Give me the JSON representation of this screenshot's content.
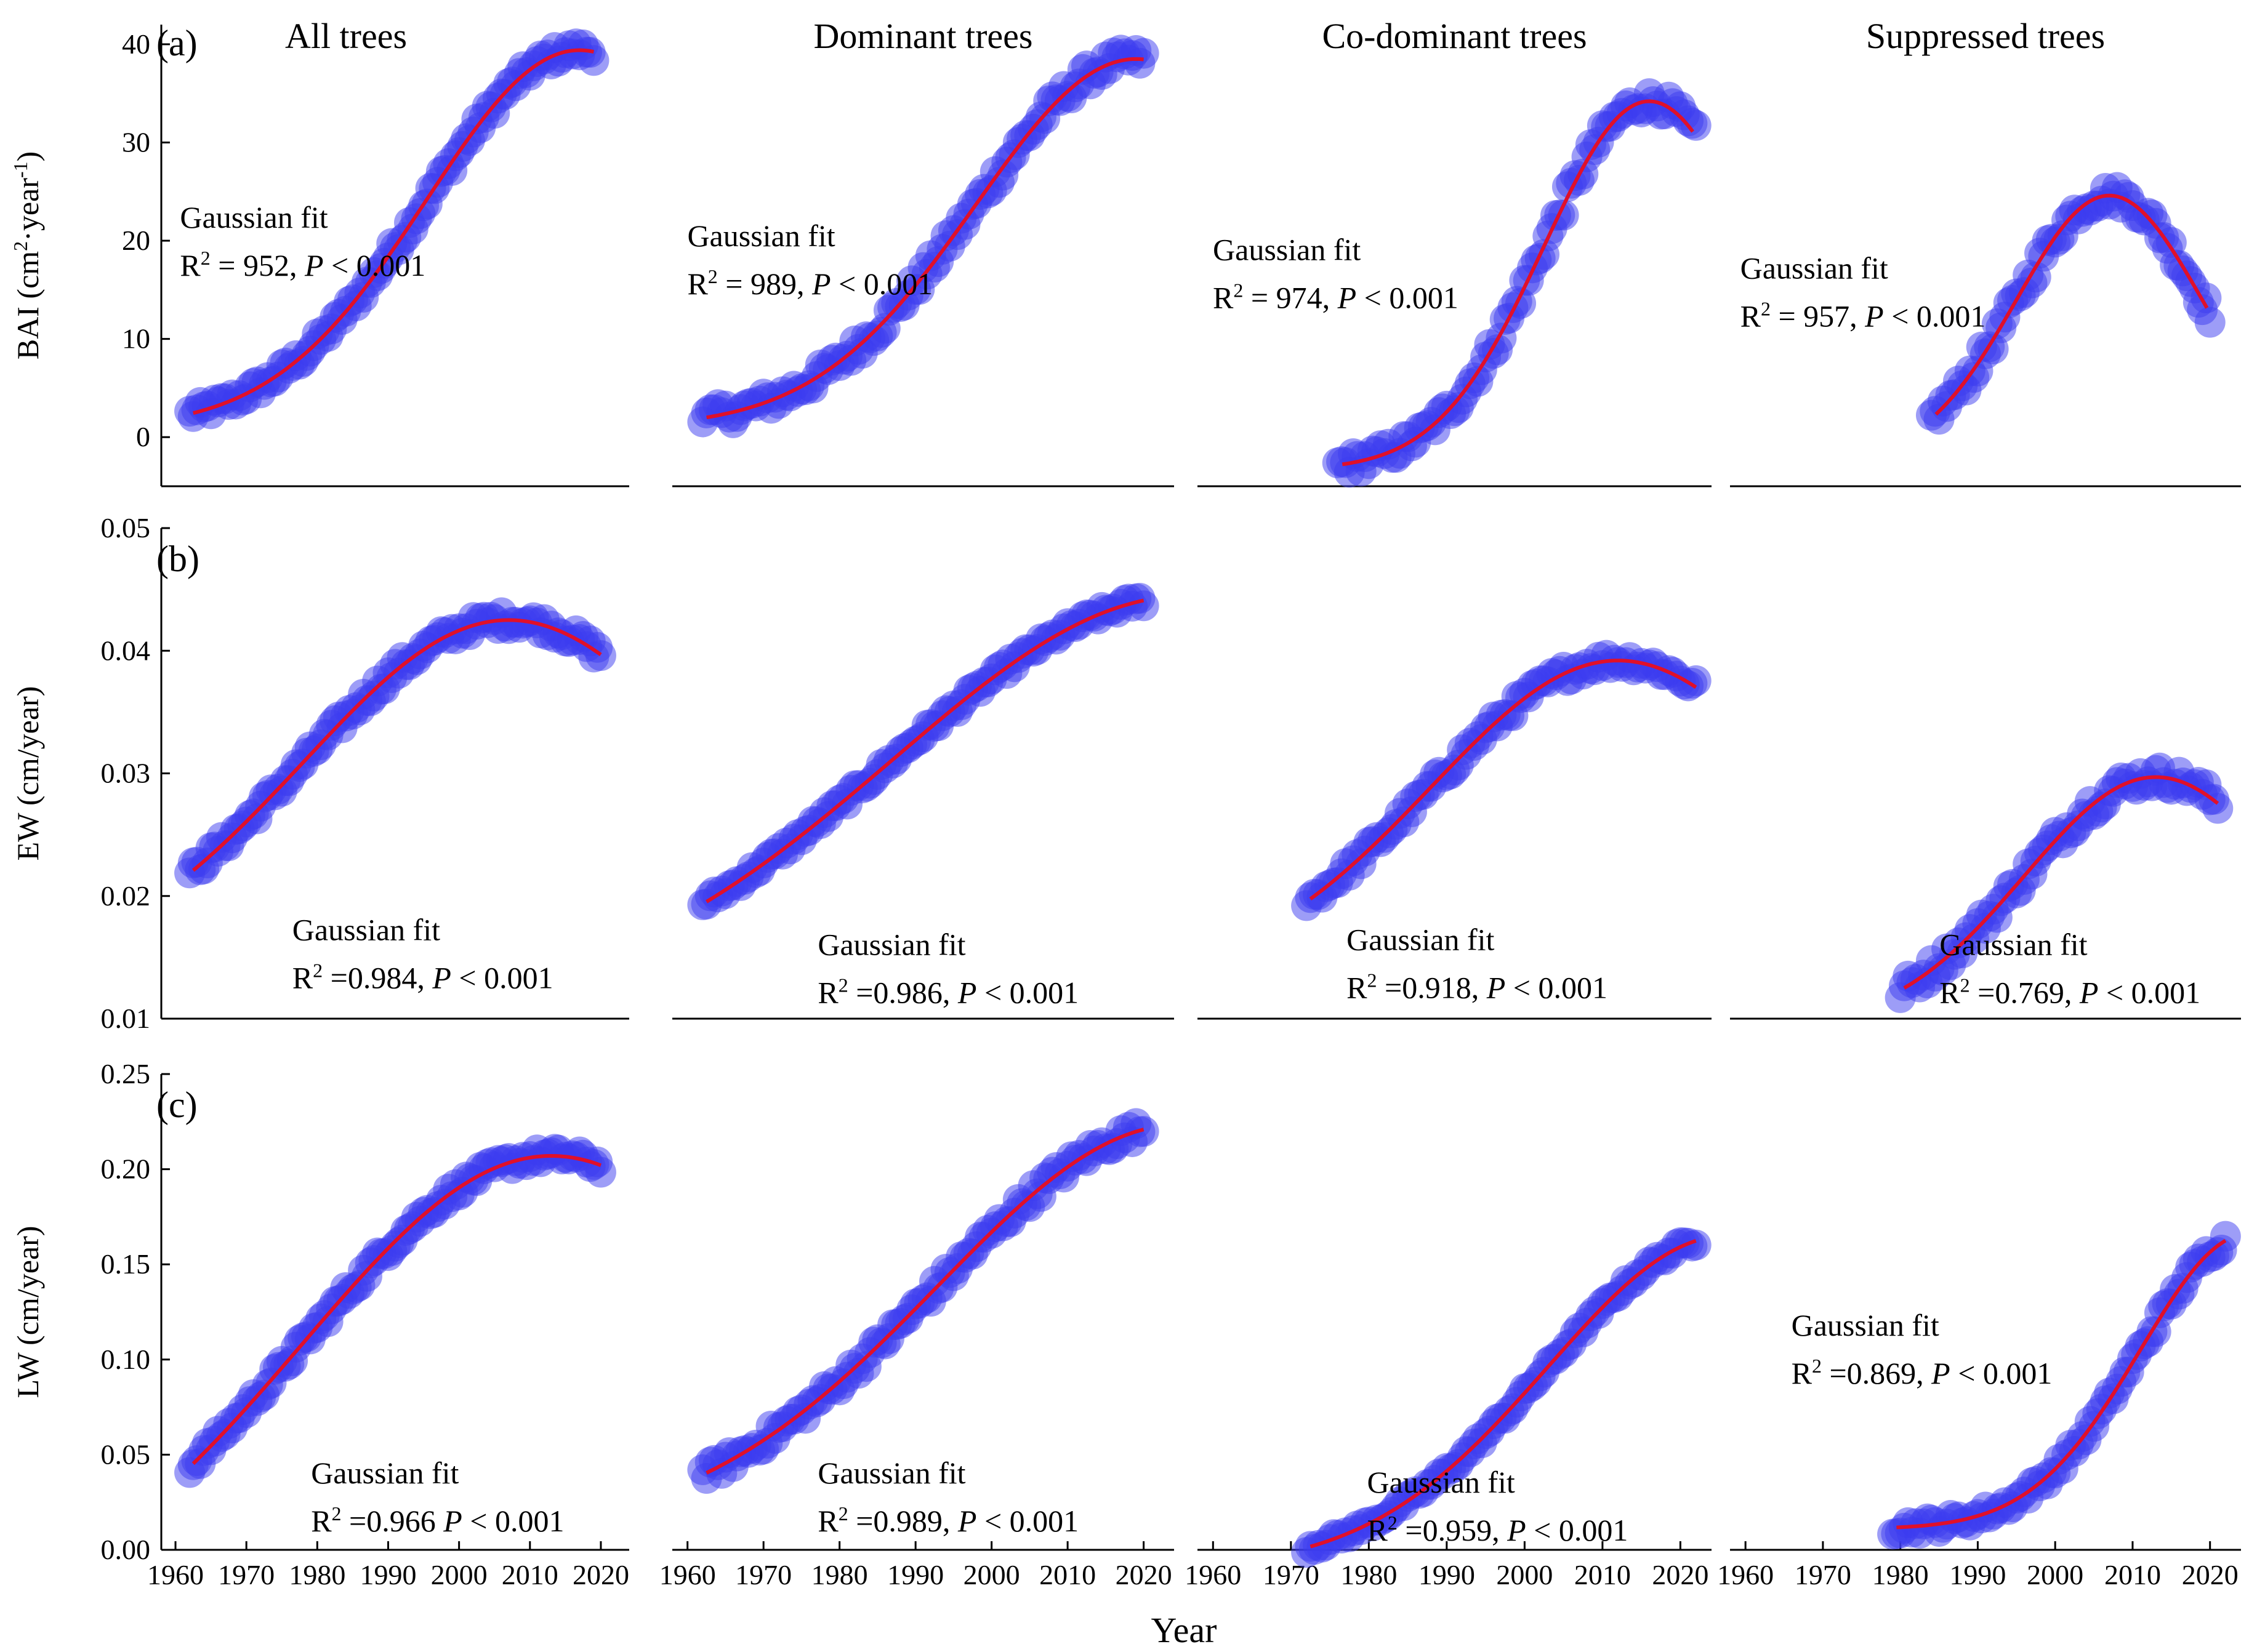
{
  "colors": {
    "points": "#3b3bf0",
    "fit": "#e0102a",
    "axis": "#000000"
  },
  "figure": {
    "xlabel": "Year",
    "col_titles": [
      "All trees",
      "Dominant trees",
      "Co-dominant trees",
      "Suppressed trees"
    ]
  },
  "chart_data": [
    {
      "type": "scatter",
      "row": 0,
      "col": 0,
      "panel_letter": "(a)",
      "title": "All trees",
      "xlim": [
        1958,
        2024
      ],
      "ylim": [
        -5,
        42
      ],
      "ylabel": "BAI (cm²·year⁻¹)",
      "yticks": [
        0,
        10,
        20,
        30,
        40
      ],
      "yticklabels": [
        "0",
        "10",
        "20",
        "30",
        "40"
      ],
      "fit_label": "Gaussian fit",
      "stat": "R² = 952, P < 0.001",
      "x_start": 1962,
      "x_end": 2019,
      "fit": {
        "a": 38.5,
        "b": 2017,
        "c": 21.5,
        "y0": 0.9,
        "smin": 0.5
      },
      "noise": 0.9
    },
    {
      "type": "scatter",
      "row": 0,
      "col": 1,
      "panel_letter": "",
      "title": "Dominant trees",
      "xlim": [
        1958,
        2024
      ],
      "ylim": [
        -5,
        42
      ],
      "ylabel": "",
      "yticks": [],
      "yticklabels": [],
      "fit_label": "Gaussian fit",
      "stat": "R² = 989, P < 0.001",
      "x_start": 1962,
      "x_end": 2020,
      "fit": {
        "a": 37.5,
        "b": 2019,
        "c": 21,
        "y0": 1.0,
        "smin": 0.5
      },
      "noise": 1.1
    },
    {
      "type": "scatter",
      "row": 0,
      "col": 2,
      "panel_letter": "",
      "title": "Co-dominant trees",
      "xlim": [
        1958,
        2024
      ],
      "ylim": [
        -5,
        42
      ],
      "ylabel": "",
      "yticks": [],
      "yticklabels": [],
      "fit_label": "Gaussian fit",
      "stat": "R² = 974, P < 0.001",
      "x_start": 1976,
      "x_end": 2022,
      "fit": {
        "a": 37.5,
        "b": 2016,
        "c": 13.5,
        "y0": -3.3,
        "smin": 0.6
      },
      "noise": 1.1
    },
    {
      "type": "scatter",
      "row": 0,
      "col": 3,
      "panel_letter": "",
      "title": "Suppressed trees",
      "xlim": [
        1958,
        2024
      ],
      "ylim": [
        -5,
        42
      ],
      "ylabel": "",
      "yticks": [],
      "yticklabels": [],
      "fit_label": "Gaussian fit",
      "stat": "R² = 957, P < 0.001",
      "x_start": 1984,
      "x_end": 2020,
      "fit": {
        "a": 27,
        "b": 2007,
        "c": 12,
        "y0": -2.4,
        "smin": 0.6
      },
      "noise": 1.1
    },
    {
      "type": "scatter",
      "row": 1,
      "col": 0,
      "panel_letter": "(b)",
      "title": "",
      "xlim": [
        1958,
        2024
      ],
      "ylim": [
        0.01,
        0.05
      ],
      "ylabel": "EW (cm/year)",
      "yticks": [
        0.01,
        0.02,
        0.03,
        0.04,
        0.05
      ],
      "yticklabels": [
        "0.01",
        "0.02",
        "0.03",
        "0.04",
        "0.05"
      ],
      "fit_label": "Gaussian fit",
      "stat": "R² =0.984, P < 0.001",
      "x_start": 1962,
      "x_end": 2020,
      "fit": {
        "a": 0.0295,
        "b": 2007,
        "c": 29,
        "y0": 0.013,
        "smin": 0.5
      },
      "noise": 0.0007
    },
    {
      "type": "scatter",
      "row": 1,
      "col": 1,
      "panel_letter": "",
      "title": "",
      "xlim": [
        1958,
        2024
      ],
      "ylim": [
        0.01,
        0.05
      ],
      "ylabel": "",
      "yticks": [],
      "yticklabels": [],
      "fit_label": "Gaussian fit",
      "stat": "R² =0.986, P < 0.001",
      "x_start": 1962,
      "x_end": 2020,
      "fit": {
        "a": 0.034,
        "b": 2026,
        "c": 39,
        "y0": 0.0105,
        "smin": 0.5
      },
      "noise": 0.0005
    },
    {
      "type": "scatter",
      "row": 1,
      "col": 2,
      "panel_letter": "",
      "title": "",
      "xlim": [
        1958,
        2024
      ],
      "ylim": [
        0.01,
        0.05
      ],
      "ylabel": "",
      "yticks": [],
      "yticklabels": [],
      "fit_label": "Gaussian fit",
      "stat": "R² =0.918, P < 0.001",
      "x_start": 1972,
      "x_end": 2022,
      "fit": {
        "a": 0.0262,
        "b": 2012,
        "c": 24,
        "y0": 0.013,
        "smin": 0.5
      },
      "noise": 0.0007
    },
    {
      "type": "scatter",
      "row": 1,
      "col": 3,
      "panel_letter": "",
      "title": "",
      "xlim": [
        1958,
        2024
      ],
      "ylim": [
        0.01,
        0.05
      ],
      "ylabel": "",
      "yticks": [],
      "yticklabels": [],
      "fit_label": "Gaussian fit",
      "stat": "R² =0.769, P < 0.001",
      "x_start": 1980,
      "x_end": 2021,
      "fit": {
        "a": 0.0205,
        "b": 2013,
        "c": 17,
        "y0": 0.0092,
        "smin": 0.5
      },
      "noise": 0.0009
    },
    {
      "type": "scatter",
      "row": 2,
      "col": 0,
      "panel_letter": "(c)",
      "title": "",
      "xlim": [
        1958,
        2024
      ],
      "ylim": [
        0,
        0.25
      ],
      "ylabel": "LW (cm/year)",
      "yticks": [
        0,
        0.05,
        0.1,
        0.15,
        0.2,
        0.25
      ],
      "yticklabels": [
        "0.00",
        "0.05",
        "0.10",
        "0.15",
        "0.20",
        "0.25"
      ],
      "fit_label": "Gaussian fit",
      "stat": "R² =0.966 P < 0.001",
      "x_start": 1962,
      "x_end": 2020,
      "fit": {
        "a": 0.25,
        "b": 2013,
        "c": 35,
        "y0": -0.043,
        "smin": 0.5
      },
      "noise": 0.004
    },
    {
      "type": "scatter",
      "row": 2,
      "col": 1,
      "panel_letter": "",
      "title": "",
      "xlim": [
        1958,
        2024
      ],
      "ylim": [
        0,
        0.25
      ],
      "ylabel": "",
      "yticks": [],
      "yticklabels": [],
      "fit_label": "Gaussian fit",
      "stat": "R² =0.989, P < 0.001",
      "x_start": 1962,
      "x_end": 2020,
      "fit": {
        "a": 0.215,
        "b": 2025,
        "c": 32,
        "y0": 0.0085,
        "smin": 0.5
      },
      "noise": 0.005
    },
    {
      "type": "scatter",
      "row": 2,
      "col": 2,
      "panel_letter": "",
      "title": "",
      "xlim": [
        1958,
        2024
      ],
      "ylim": [
        0,
        0.25
      ],
      "ylabel": "",
      "yticks": [],
      "yticklabels": [],
      "fit_label": "Gaussian fit",
      "stat": "R² =0.959, P < 0.001",
      "x_start": 1972,
      "x_end": 2022,
      "fit": {
        "a": 0.175,
        "b": 2026,
        "c": 23,
        "y0": -0.01,
        "smin": 0.5
      },
      "noise": 0.0025
    },
    {
      "type": "scatter",
      "row": 2,
      "col": 3,
      "panel_letter": "",
      "title": "",
      "xlim": [
        1958,
        2024
      ],
      "ylim": [
        0,
        0.25
      ],
      "ylabel": "",
      "yticks": [],
      "yticklabels": [],
      "fit_label": "Gaussian fit",
      "stat": "R² =0.869, P < 0.001",
      "x_start": 1979,
      "x_end": 2022,
      "fit": {
        "a": 0.155,
        "b": 2025,
        "c": 14,
        "y0": 0.011,
        "smin": 0.5
      },
      "noise": 0.004
    }
  ],
  "xticks": [
    1960,
    1970,
    1980,
    1990,
    2000,
    2010,
    2020
  ],
  "xticklabels": [
    "1960",
    "1970",
    "1980",
    "1990",
    "2000",
    "2010",
    "2020"
  ]
}
